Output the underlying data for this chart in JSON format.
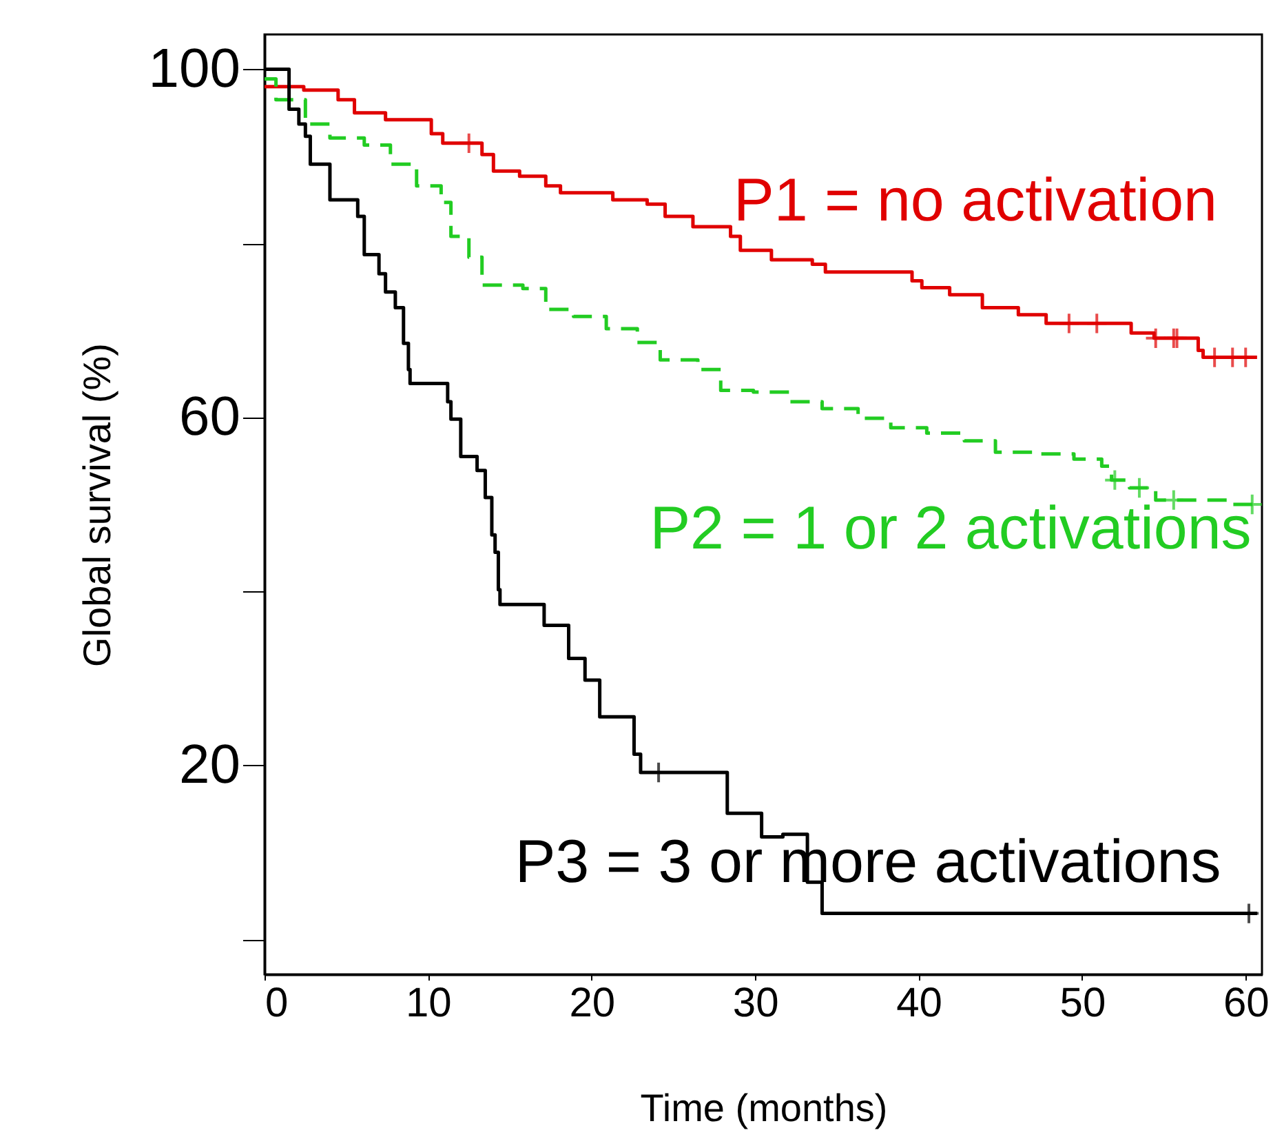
{
  "chart_data": {
    "type": "step",
    "xlabel": "Time (months)",
    "ylabel": "Global survival (%)",
    "xlim": [
      0,
      61
    ],
    "ylim": [
      -4,
      104
    ],
    "xticks": [
      0,
      10,
      20,
      30,
      40,
      50,
      60
    ],
    "yticks": [
      {
        "value": 0,
        "label": null
      },
      20,
      {
        "value": 40,
        "label": null
      },
      60,
      {
        "value": 80,
        "label": null
      },
      100
    ],
    "grid": false,
    "marker": "none",
    "series": [
      {
        "name": "P1 = no activation",
        "color": "#e00000",
        "line_style": "solid",
        "x": [
          0,
          2.4,
          4.5,
          5.5,
          7.4,
          10.2,
          10.9,
          13.3,
          14,
          15.6,
          17.2,
          18.1,
          21.3,
          23.4,
          24.5,
          26.2,
          28.5,
          29.1,
          31,
          33.5,
          34.3,
          39.6,
          40.2,
          41.9,
          43.9,
          46.1,
          47.8,
          53,
          54.4,
          57.1,
          57.4,
          60.7
        ],
        "values": [
          98,
          97.6,
          96.5,
          95,
          94.2,
          92.6,
          91.5,
          90.2,
          88.3,
          87.7,
          86.6,
          85.8,
          85,
          84.5,
          83.1,
          81.9,
          80.8,
          79.2,
          78.1,
          77.6,
          76.7,
          75.7,
          74.9,
          74.1,
          72.6,
          71.8,
          70.8,
          69.7,
          69.1,
          67.7,
          66.9,
          66.9
        ]
      },
      {
        "name": "P2 = 1 or 2 activations",
        "color": "#22cc22",
        "line_style": "dashed",
        "x": [
          0,
          0.7,
          2.5,
          4,
          6.1,
          7.7,
          9.3,
          10.8,
          11.4,
          12.5,
          13.3,
          15.8,
          17.2,
          18.9,
          20.9,
          22.8,
          24.2,
          26.5,
          27.9,
          29.9,
          32.1,
          34.1,
          36.3,
          38.3,
          40.5,
          42.8,
          44.7,
          47,
          49.5,
          51.2,
          51.8,
          52.9,
          54.5,
          59,
          60.9
        ],
        "values": [
          98.9,
          96.5,
          93.7,
          92.1,
          91.3,
          89.1,
          86.6,
          84.7,
          80.8,
          78.4,
          75.2,
          74.8,
          72.4,
          71.6,
          70.2,
          68.6,
          66.6,
          65.5,
          63.1,
          62.9,
          61.8,
          61,
          59.9,
          58.8,
          58.2,
          57.3,
          56,
          55.8,
          55.2,
          54.4,
          52.8,
          51.9,
          50.5,
          50,
          50
        ]
      },
      {
        "name": "P3 = 3 or more activations",
        "color": "#000000",
        "line_style": "solid",
        "x": [
          0,
          1.5,
          2.1,
          2.5,
          2.8,
          4,
          5.7,
          6.1,
          7,
          7.4,
          8,
          8.5,
          8.8,
          8.9,
          11.2,
          11.4,
          12,
          13,
          13.5,
          13.9,
          14.1,
          14.3,
          14.4,
          17.1,
          18.6,
          19.6,
          20.5,
          22.6,
          23,
          28.3,
          30.4,
          31.7,
          33.2,
          34.1,
          60.7
        ],
        "values": [
          100,
          95.4,
          93.7,
          92.3,
          89.1,
          85,
          83.1,
          78.7,
          76.5,
          74.4,
          72.6,
          68.5,
          65.5,
          63.9,
          61.8,
          59.8,
          55.5,
          53.9,
          50.8,
          46.5,
          44.5,
          40.2,
          38.5,
          36.1,
          32.3,
          29.8,
          25.6,
          21.3,
          19.2,
          14.5,
          11.8,
          12.1,
          6.6,
          3,
          3
        ]
      },
      {
        "type": "scatter",
        "marker": "cross",
        "color": "#e00000",
        "x": [
          12.5,
          49.2,
          50.9,
          54.5,
          55.6,
          55.8,
          58.1,
          59.2,
          60
        ],
        "values": [
          91.5,
          70.8,
          70.8,
          69.1,
          69.1,
          69.1,
          66.9,
          66.9,
          66.9
        ]
      },
      {
        "type": "scatter",
        "marker": "cross",
        "color": "#22cc22",
        "x": [
          52,
          53.5,
          55.6,
          60.4
        ],
        "values": [
          52.8,
          51.9,
          50.5,
          50
        ]
      },
      {
        "type": "scatter",
        "marker": "cross",
        "color": "#000000",
        "x": [
          24.1,
          60.2
        ],
        "values": [
          19.2,
          3
        ]
      }
    ]
  }
}
